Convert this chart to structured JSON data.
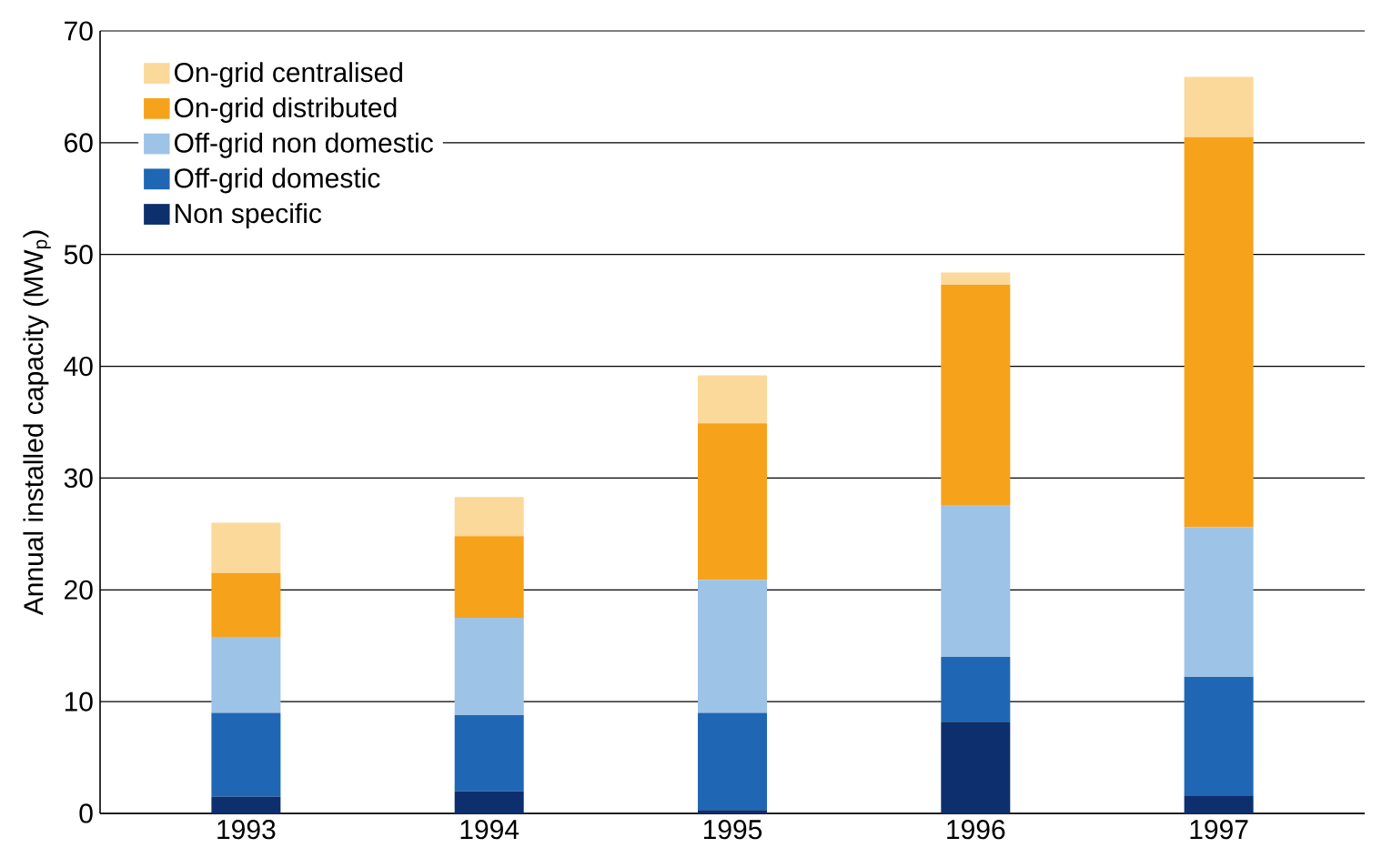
{
  "chart_data": {
    "type": "bar",
    "stacked": true,
    "ylabel": "Annual installed capacity (MW$_{p}$)",
    "categories": [
      "1993",
      "1994",
      "1995",
      "1996",
      "1997"
    ],
    "series": [
      {
        "name": "Non specific",
        "color": "#0d2f6e",
        "values": [
          1.5,
          2.0,
          0.3,
          8.2,
          1.6
        ]
      },
      {
        "name": "Off-grid domestic",
        "color": "#1f67b4",
        "values": [
          7.5,
          6.8,
          8.7,
          5.8,
          10.6
        ]
      },
      {
        "name": "Off-grid non domestic",
        "color": "#9dc3e6",
        "values": [
          6.8,
          8.7,
          11.9,
          13.6,
          13.4
        ]
      },
      {
        "name": "On-grid distributed",
        "color": "#f7a21b",
        "values": [
          5.7,
          7.3,
          14.0,
          19.7,
          34.9
        ]
      },
      {
        "name": "On-grid centralised",
        "color": "#fbd99a",
        "values": [
          4.5,
          3.5,
          4.3,
          1.1,
          5.4
        ]
      }
    ],
    "ylim": [
      0,
      70
    ],
    "yticks": [
      0,
      10,
      20,
      30,
      40,
      50,
      60,
      70
    ],
    "grid": "y",
    "legend": "top left"
  }
}
